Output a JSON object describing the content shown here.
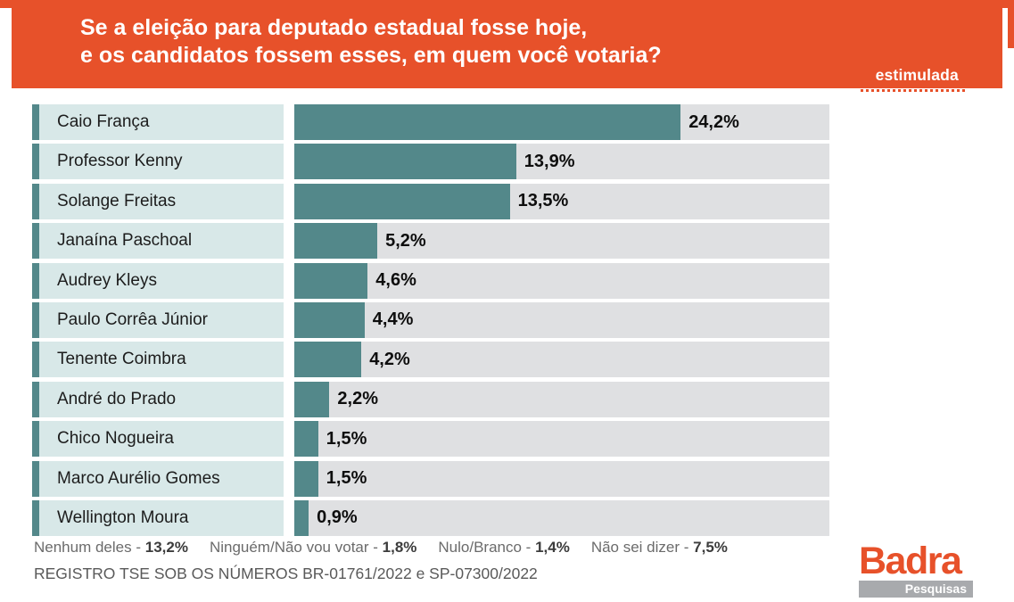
{
  "header": {
    "title_line1": "Se a eleição para deputado estadual fosse hoje,",
    "title_line2": "e os candidatos fossem esses, em quem você votaria?",
    "tag_label": "estimulada"
  },
  "chart_data": {
    "type": "bar",
    "orientation": "horizontal",
    "title": "Se a eleição para deputado estadual fosse hoje, e os candidatos fossem esses, em quem você votaria?",
    "subtitle": "estimulada",
    "categories": [
      "Caio França",
      "Professor Kenny",
      "Solange Freitas",
      "Janaína Paschoal",
      "Audrey Kleys",
      "Paulo Corrêa Júnior",
      "Tenente Coimbra",
      "André do Prado",
      "Chico Nogueira",
      "Marco Aurélio Gomes",
      "Wellington Moura"
    ],
    "values": [
      24.2,
      13.9,
      13.5,
      5.2,
      4.6,
      4.4,
      4.2,
      2.2,
      1.5,
      1.5,
      0.9
    ],
    "value_labels": [
      "24,2%",
      "13,9%",
      "13,5%",
      "5,2%",
      "4,6%",
      "4,4%",
      "4,2%",
      "2,2%",
      "1,5%",
      "1,5%",
      "0,9%"
    ],
    "xlim": [
      0,
      33.5
    ],
    "grid": false,
    "legend": false,
    "bar_color": "#53888a",
    "track_color": "#dfe0e2",
    "category_label_bg": "#d8e8e8"
  },
  "footer": {
    "other_answers": [
      {
        "label": "Nenhum deles -",
        "value": "13,2%"
      },
      {
        "label": "Ninguém/Não vou votar -",
        "value": "1,8%"
      },
      {
        "label": "Nulo/Branco -",
        "value": "1,4%"
      },
      {
        "label": "Não sei dizer -",
        "value": "7,5%"
      }
    ],
    "registry_line": "REGISTRO TSE SOB OS NÚMEROS BR-01761/2022 e SP-07300/2022"
  },
  "logo": {
    "brand": "Badra",
    "tagline": "Pesquisas"
  },
  "colors": {
    "orange": "#e7512a",
    "bar_teal": "#53888a",
    "label_bg": "#d8e8e8",
    "track_gray": "#dfe0e2",
    "logo_gray": "#a8aaad"
  }
}
